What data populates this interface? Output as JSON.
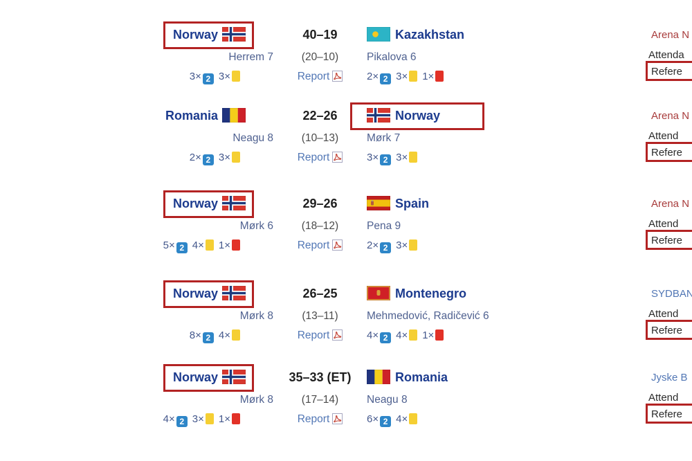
{
  "page": {
    "background": "#ffffff"
  },
  "colors": {
    "annotation_box": "#b32323",
    "team_link": "#1c3b8e",
    "scorer_link": "#4f6190",
    "report_link": "#5277b5",
    "venue_redlink": "#a83c3c",
    "venue_bluelink": "#5277b5",
    "two_min_card": "#2e86c8",
    "yellow_card": "#f5cf33",
    "red_card": "#e23127"
  },
  "matches": [
    {
      "home": {
        "name": "Norway",
        "flag": "norway-flag",
        "highlighted": true,
        "scorers": "Herrem 7",
        "cards": [
          {
            "count": "3×",
            "type": "two-min",
            "label": "2"
          },
          {
            "count": "3×",
            "type": "yellow",
            "label": ""
          }
        ]
      },
      "score": "40–19",
      "halftime": "(20–10)",
      "report": {
        "label": "Report",
        "icon": "pdf-icon"
      },
      "away": {
        "name": "Kazakhstan",
        "flag": "kazakhstan-flag",
        "highlighted": false,
        "scorers": "Pikalova 6",
        "cards": [
          {
            "count": "2×",
            "type": "two-min",
            "label": "2"
          },
          {
            "count": "3×",
            "type": "yellow",
            "label": ""
          },
          {
            "count": "1×",
            "type": "red",
            "label": ""
          }
        ]
      },
      "info": {
        "venue": "Arena N",
        "venue_link_color": "#a83c3c",
        "attendance": "Attenda",
        "referees": "Refere"
      }
    },
    {
      "home": {
        "name": "Romania",
        "flag": "romania-flag",
        "highlighted": false,
        "scorers": "Neagu 8",
        "cards": [
          {
            "count": "2×",
            "type": "two-min",
            "label": "2"
          },
          {
            "count": "3×",
            "type": "yellow",
            "label": ""
          }
        ]
      },
      "score": "22–26",
      "halftime": "(10–13)",
      "report": {
        "label": "Report",
        "icon": "pdf-icon"
      },
      "away": {
        "name": "Norway",
        "flag": "norway-flag",
        "highlighted": true,
        "scorers": "Mørk 7",
        "cards": [
          {
            "count": "3×",
            "type": "two-min",
            "label": "2"
          },
          {
            "count": "3×",
            "type": "yellow",
            "label": ""
          }
        ]
      },
      "info": {
        "venue": "Arena N",
        "venue_link_color": "#a83c3c",
        "attendance": "Attend",
        "referees": "Refere"
      }
    },
    {
      "home": {
        "name": "Norway",
        "flag": "norway-flag",
        "highlighted": true,
        "scorers": "Mørk 6",
        "cards": [
          {
            "count": "5×",
            "type": "two-min",
            "label": "2"
          },
          {
            "count": "4×",
            "type": "yellow",
            "label": ""
          },
          {
            "count": "1×",
            "type": "red",
            "label": ""
          }
        ]
      },
      "score": "29–26",
      "halftime": "(18–12)",
      "report": {
        "label": "Report",
        "icon": "pdf-icon"
      },
      "away": {
        "name": "Spain",
        "flag": "spain-flag",
        "highlighted": false,
        "scorers": "Pena 9",
        "cards": [
          {
            "count": "2×",
            "type": "two-min",
            "label": "2"
          },
          {
            "count": "3×",
            "type": "yellow",
            "label": ""
          }
        ]
      },
      "info": {
        "venue": "Arena N",
        "venue_link_color": "#a83c3c",
        "attendance": "Attend",
        "referees": "Refere"
      }
    },
    {
      "home": {
        "name": "Norway",
        "flag": "norway-flag",
        "highlighted": true,
        "scorers": "Mørk 8",
        "cards": [
          {
            "count": "8×",
            "type": "two-min",
            "label": "2"
          },
          {
            "count": "4×",
            "type": "yellow",
            "label": ""
          }
        ]
      },
      "score": "26–25",
      "halftime": "(13–11)",
      "report": {
        "label": "Report",
        "icon": "pdf-icon"
      },
      "away": {
        "name": "Montenegro",
        "flag": "montenegro-flag",
        "highlighted": false,
        "scorers": "Mehmedović, Radičević 6",
        "cards": [
          {
            "count": "4×",
            "type": "two-min",
            "label": "2"
          },
          {
            "count": "4×",
            "type": "yellow",
            "label": ""
          },
          {
            "count": "1×",
            "type": "red",
            "label": ""
          }
        ]
      },
      "info": {
        "venue": "SYDBAN",
        "venue_link_color": "#5277b5",
        "attendance": "Attend",
        "referees": "Refere"
      }
    },
    {
      "home": {
        "name": "Norway",
        "flag": "norway-flag",
        "highlighted": true,
        "scorers": "Mørk 8",
        "cards": [
          {
            "count": "4×",
            "type": "two-min",
            "label": "2"
          },
          {
            "count": "3×",
            "type": "yellow",
            "label": ""
          },
          {
            "count": "1×",
            "type": "red",
            "label": ""
          }
        ]
      },
      "score": "35–33 (ET)",
      "halftime": "(17–14)",
      "report": {
        "label": "Report",
        "icon": "pdf-icon"
      },
      "away": {
        "name": "Romania",
        "flag": "romania-flag",
        "highlighted": false,
        "scorers": "Neagu 8",
        "cards": [
          {
            "count": "6×",
            "type": "two-min",
            "label": "2"
          },
          {
            "count": "4×",
            "type": "yellow",
            "label": ""
          }
        ]
      },
      "info": {
        "venue": "Jyske B",
        "venue_link_color": "#5277b5",
        "attendance": "Attend",
        "referees": "Refere"
      }
    }
  ]
}
